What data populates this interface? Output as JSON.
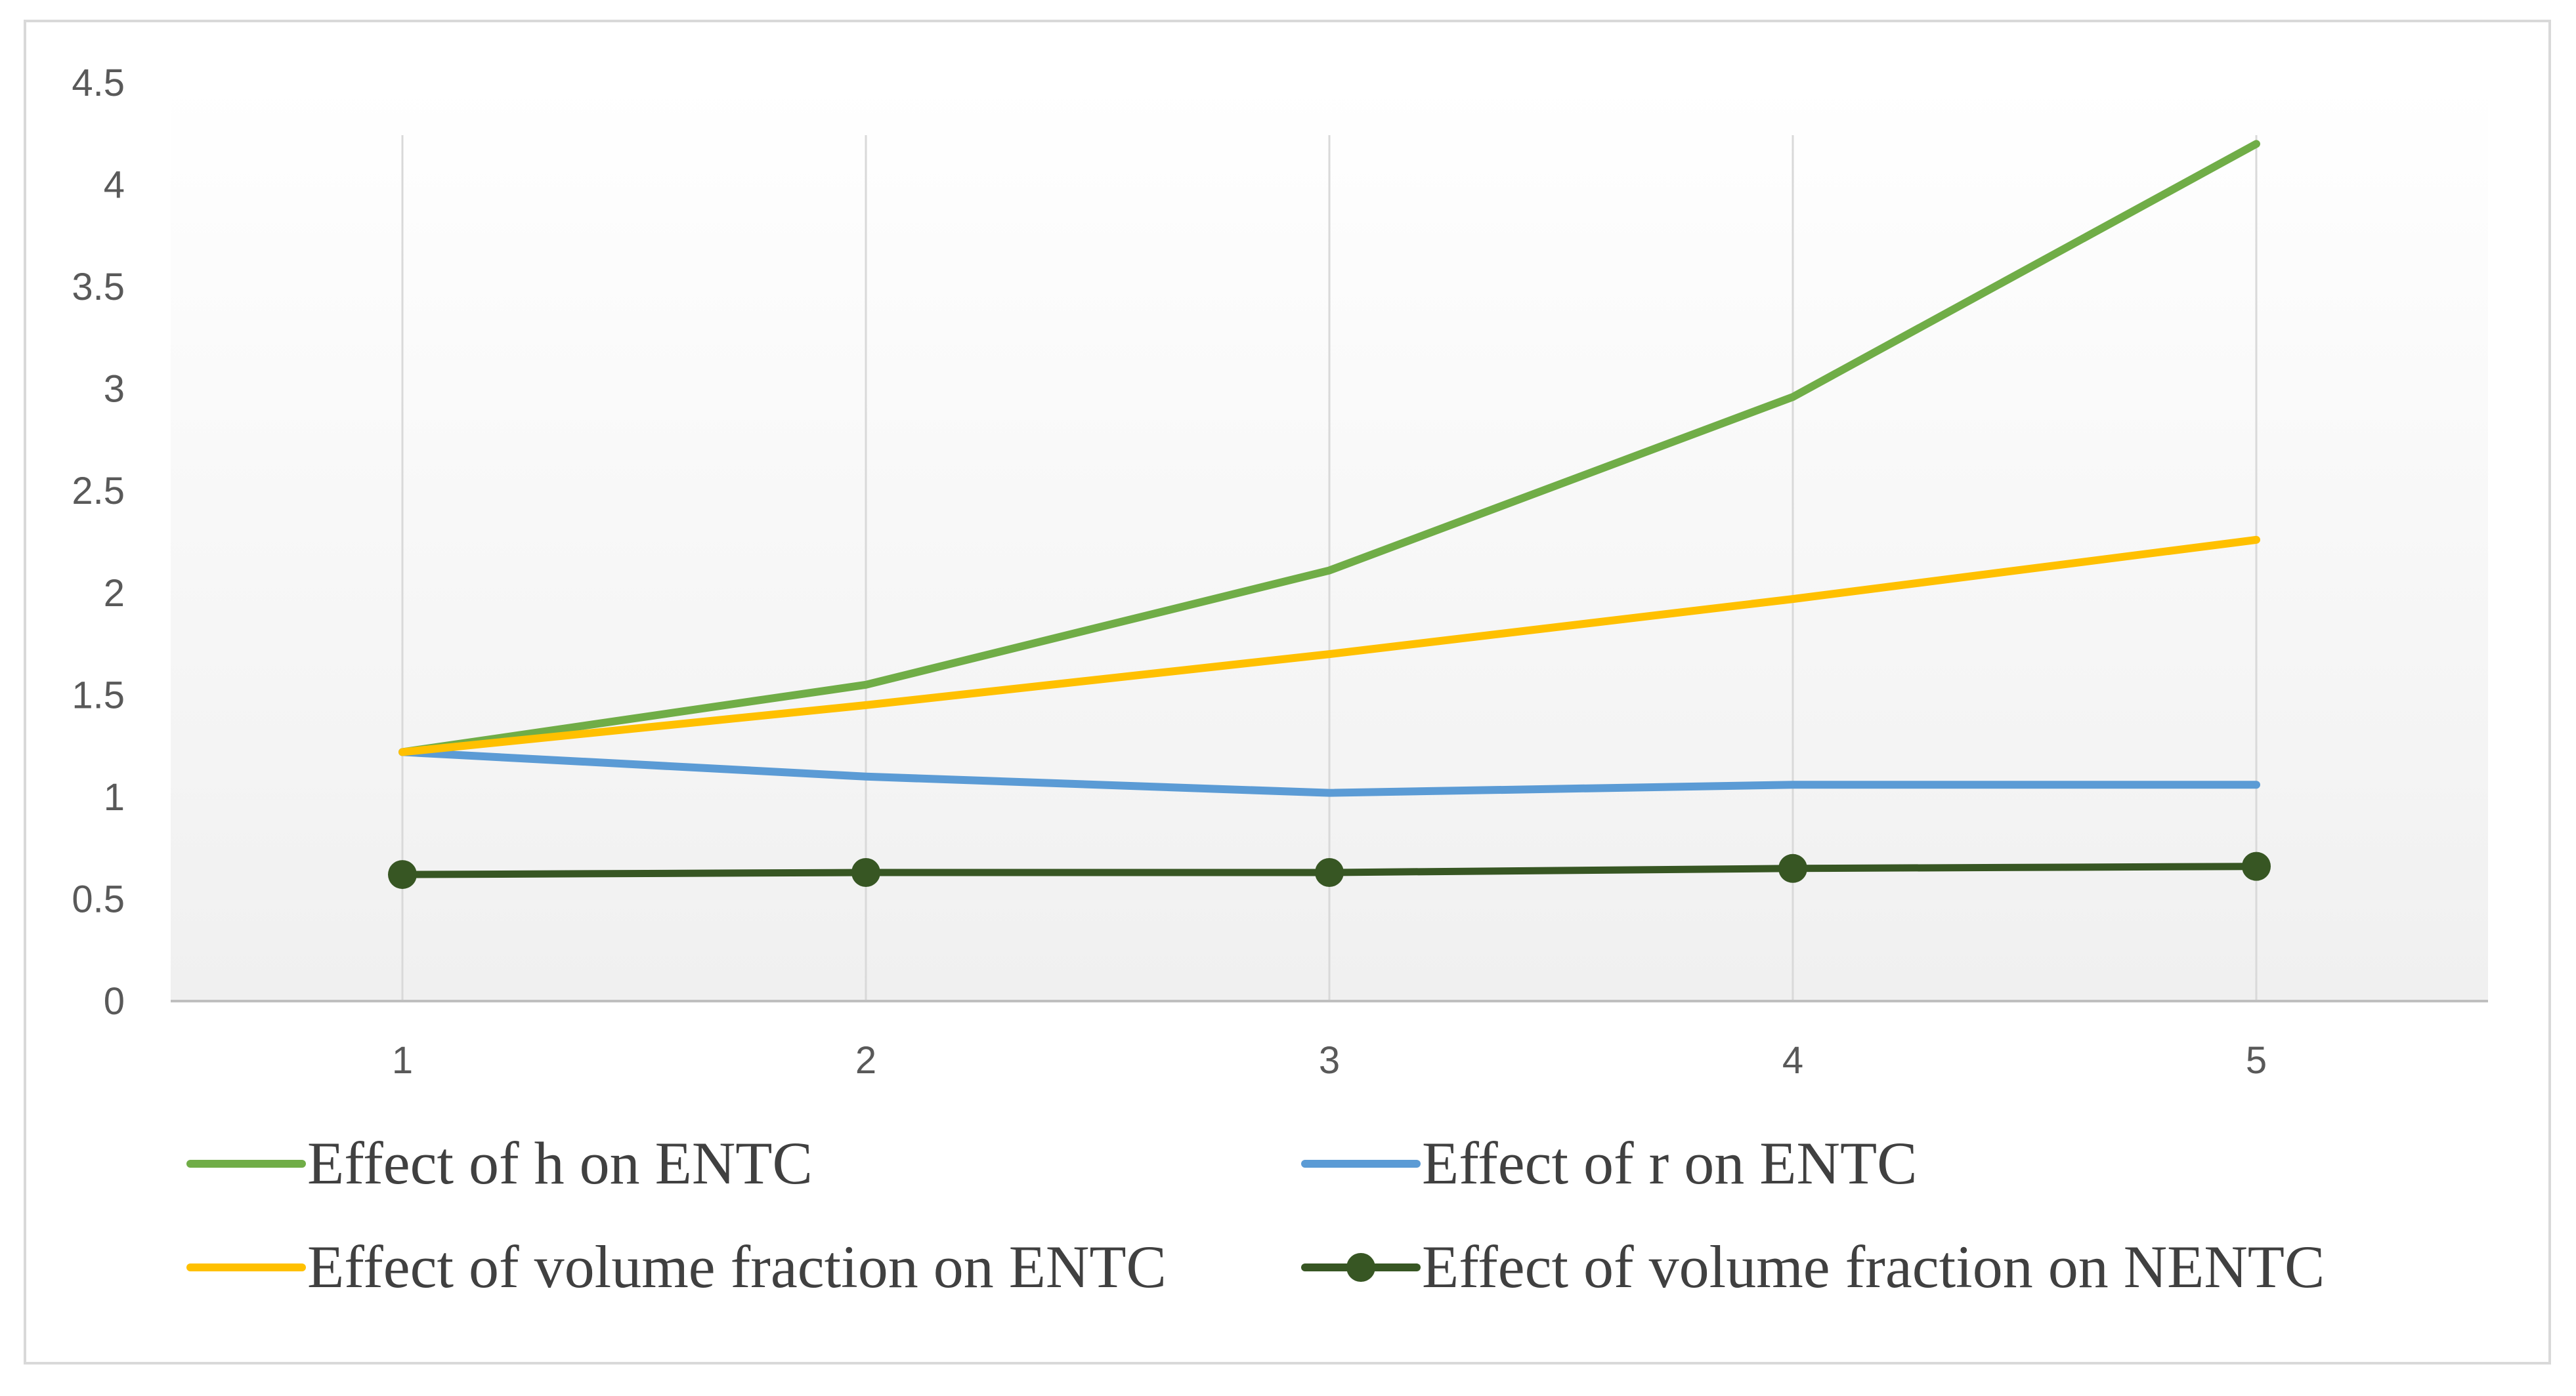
{
  "chart_data": {
    "type": "line",
    "title": "",
    "xlabel": "",
    "ylabel": "",
    "x": [
      1,
      2,
      3,
      4,
      5
    ],
    "categories": [
      "1",
      "2",
      "3",
      "4",
      "5"
    ],
    "ylim": [
      0,
      4.5
    ],
    "yticks": [
      "0",
      "0.5",
      "1",
      "1.5",
      "2",
      "2.5",
      "3",
      "3.5",
      "4",
      "4.5"
    ],
    "ytick_values": [
      0,
      0.5,
      1,
      1.5,
      2,
      2.5,
      3,
      3.5,
      4,
      4.5
    ],
    "grid": "vertical",
    "legend_position": "bottom",
    "series": [
      {
        "name": "Effect of h on ENTC",
        "values": [
          1.22,
          1.55,
          2.11,
          2.96,
          4.2
        ],
        "color": "#70ad47",
        "markers": false
      },
      {
        "name": "Effect of r on ENTC",
        "values": [
          1.22,
          1.1,
          1.02,
          1.06,
          1.06
        ],
        "color": "#5b9bd5",
        "markers": false
      },
      {
        "name": "Effect of volume fraction on ENTC",
        "values": [
          1.22,
          1.45,
          1.7,
          1.97,
          2.26
        ],
        "color": "#ffc000",
        "markers": false
      },
      {
        "name": "Effect of volume fraction on NENTC",
        "values": [
          0.62,
          0.63,
          0.63,
          0.65,
          0.66
        ],
        "color": "#375623",
        "markers": true
      }
    ]
  }
}
